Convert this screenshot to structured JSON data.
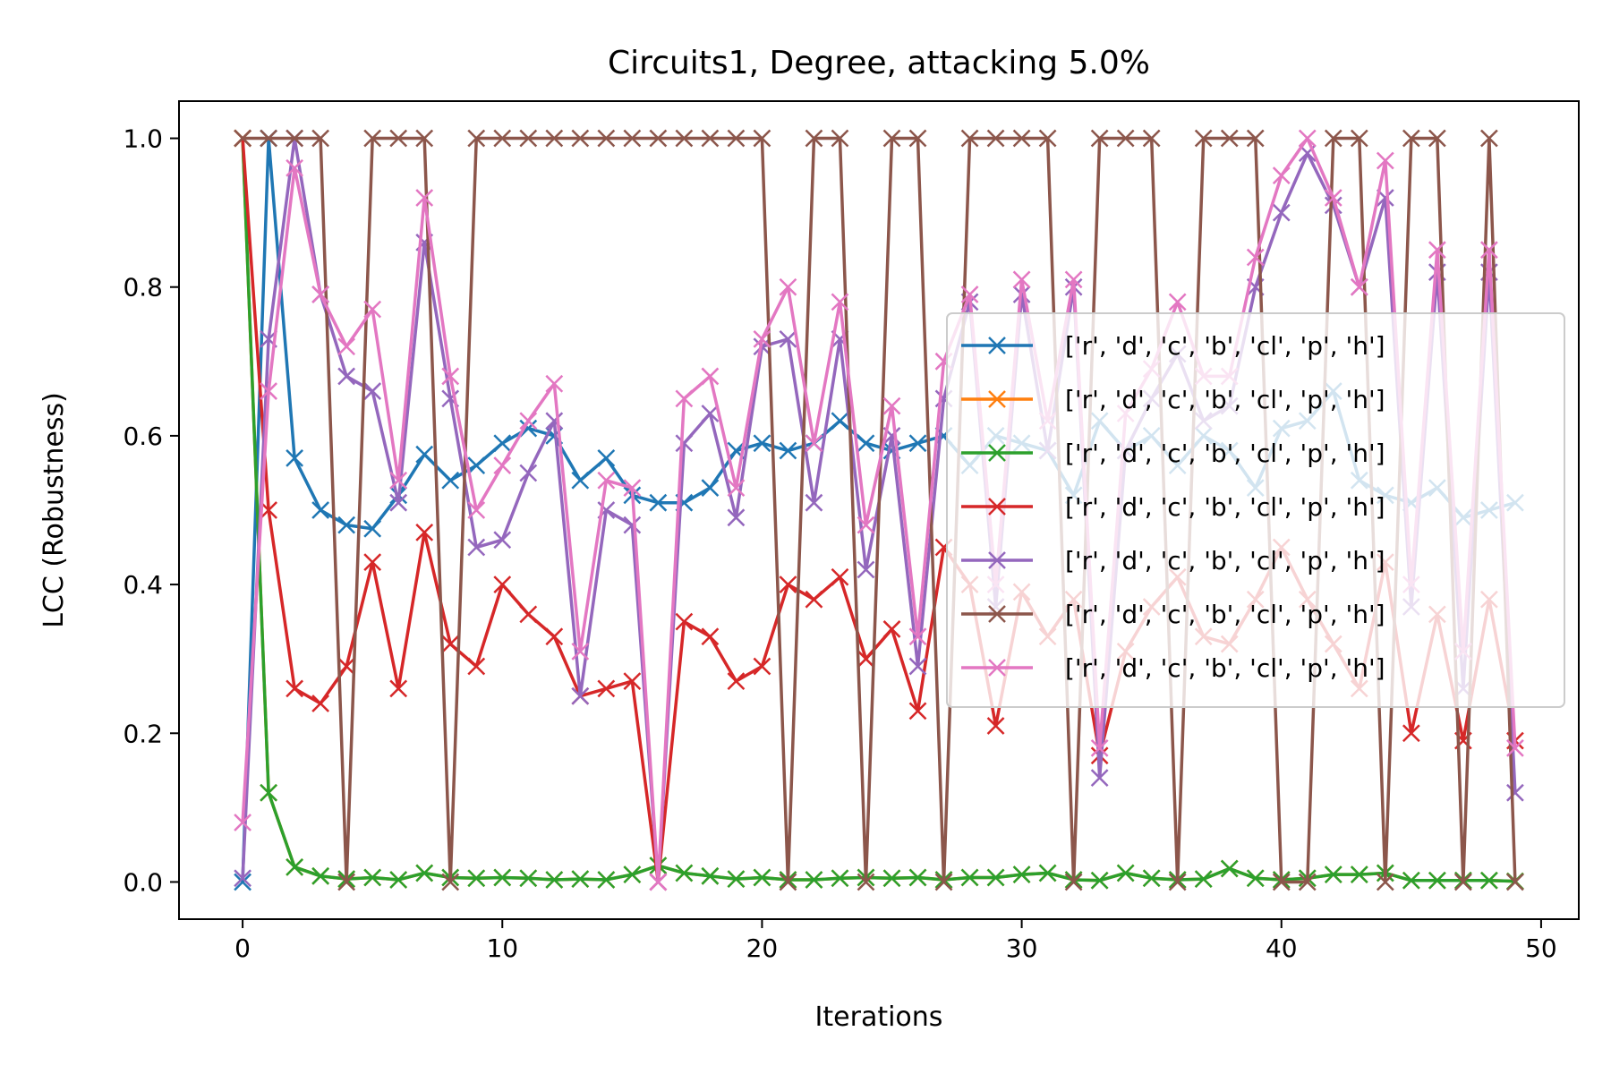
{
  "chart_data": {
    "type": "line",
    "title": "Circuits1, Degree, attacking 5.0%",
    "xlabel": "Iterations",
    "ylabel": "LCC (Robustness)",
    "xlim": [
      -2.45,
      51.45
    ],
    "ylim": [
      -0.05,
      1.05
    ],
    "xticks": [
      0,
      10,
      20,
      30,
      40,
      50
    ],
    "yticks": [
      0.0,
      0.2,
      0.4,
      0.6,
      0.8,
      1.0
    ],
    "xtick_labels": [
      "0",
      "10",
      "20",
      "30",
      "40",
      "50"
    ],
    "ytick_labels": [
      "0.0",
      "0.2",
      "0.4",
      "0.6",
      "0.8",
      "1.0"
    ],
    "grid": false,
    "legend_position": "center-right",
    "marker": "x",
    "x": [
      0,
      1,
      2,
      3,
      4,
      5,
      6,
      7,
      8,
      9,
      10,
      11,
      12,
      13,
      14,
      15,
      16,
      17,
      18,
      19,
      20,
      21,
      22,
      23,
      24,
      25,
      26,
      27,
      28,
      29,
      30,
      31,
      32,
      33,
      34,
      35,
      36,
      37,
      38,
      39,
      40,
      41,
      42,
      43,
      44,
      45,
      46,
      47,
      48,
      49
    ],
    "series": [
      {
        "name": "['r', 'd', 'c', 'b', 'cl', 'p', 'h']",
        "color": "#1f77b4",
        "values": [
          0.0,
          1.0,
          0.57,
          0.5,
          0.48,
          0.475,
          0.52,
          0.575,
          0.54,
          0.56,
          0.59,
          0.61,
          0.6,
          0.54,
          0.57,
          0.52,
          0.51,
          0.51,
          0.53,
          0.58,
          0.59,
          0.58,
          0.59,
          0.62,
          0.59,
          0.58,
          0.59,
          0.6,
          0.56,
          0.6,
          0.59,
          0.58,
          0.52,
          0.62,
          0.58,
          0.6,
          0.56,
          0.6,
          0.58,
          0.53,
          0.61,
          0.62,
          0.66,
          0.54,
          0.52,
          0.51,
          0.53,
          0.49,
          0.5,
          0.51
        ]
      },
      {
        "name": "['r', 'd', 'c', 'b', 'cl', 'p', 'h']",
        "color": "#ff7f0e",
        "values": [
          1.0,
          0.12,
          0.02,
          0.008,
          0.004,
          0.006,
          0.003,
          0.012,
          0.006,
          0.005,
          0.006,
          0.005,
          0.003,
          0.004,
          0.003,
          0.01,
          0.022,
          0.012,
          0.008,
          0.004,
          0.006,
          0.003,
          0.003,
          0.005,
          0.006,
          0.005,
          0.006,
          0.003,
          0.006,
          0.006,
          0.01,
          0.012,
          0.003,
          0.002,
          0.012,
          0.005,
          0.003,
          0.004,
          0.018,
          0.005,
          0.003,
          0.005,
          0.01,
          0.01,
          0.012,
          0.002,
          0.002,
          0.002,
          0.002,
          0.001
        ]
      },
      {
        "name": "['r', 'd', 'c', 'b', 'cl', 'p', 'h']",
        "color": "#2ca02c",
        "values": [
          1.0,
          0.12,
          0.02,
          0.008,
          0.004,
          0.006,
          0.003,
          0.012,
          0.006,
          0.005,
          0.006,
          0.005,
          0.003,
          0.004,
          0.003,
          0.01,
          0.022,
          0.012,
          0.008,
          0.004,
          0.006,
          0.003,
          0.003,
          0.005,
          0.006,
          0.005,
          0.006,
          0.003,
          0.006,
          0.006,
          0.01,
          0.012,
          0.003,
          0.002,
          0.012,
          0.005,
          0.003,
          0.004,
          0.018,
          0.005,
          0.003,
          0.005,
          0.01,
          0.01,
          0.012,
          0.002,
          0.002,
          0.002,
          0.002,
          0.001
        ]
      },
      {
        "name": "['r', 'd', 'c', 'b', 'cl', 'p', 'h']",
        "color": "#d62728",
        "values": [
          1.0,
          0.5,
          0.26,
          0.24,
          0.29,
          0.43,
          0.26,
          0.47,
          0.32,
          0.29,
          0.4,
          0.36,
          0.33,
          0.25,
          0.26,
          0.27,
          0.0,
          0.35,
          0.33,
          0.27,
          0.29,
          0.4,
          0.38,
          0.41,
          0.3,
          0.34,
          0.23,
          0.45,
          0.4,
          0.21,
          0.39,
          0.33,
          0.38,
          0.17,
          0.31,
          0.37,
          0.41,
          0.33,
          0.32,
          0.38,
          0.45,
          0.38,
          0.32,
          0.26,
          0.43,
          0.2,
          0.36,
          0.19,
          0.38,
          0.19
        ]
      },
      {
        "name": "['r', 'd', 'c', 'b', 'cl', 'p', 'h']",
        "color": "#9467bd",
        "values": [
          0.005,
          0.73,
          1.0,
          0.79,
          0.68,
          0.66,
          0.51,
          0.86,
          0.65,
          0.45,
          0.46,
          0.55,
          0.62,
          0.25,
          0.5,
          0.48,
          0.0,
          0.59,
          0.63,
          0.49,
          0.72,
          0.73,
          0.51,
          0.73,
          0.42,
          0.6,
          0.29,
          0.65,
          0.78,
          0.37,
          0.79,
          0.58,
          0.8,
          0.14,
          0.58,
          0.65,
          0.71,
          0.62,
          0.64,
          0.8,
          0.9,
          0.98,
          0.91,
          0.8,
          0.92,
          0.37,
          0.82,
          0.26,
          0.82,
          0.12
        ]
      },
      {
        "name": "['r', 'd', 'c', 'b', 'cl', 'p', 'h']",
        "color": "#8c564b",
        "values": [
          1.0,
          1.0,
          1.0,
          1.0,
          0.0,
          1.0,
          1.0,
          1.0,
          0.0,
          1.0,
          1.0,
          1.0,
          1.0,
          1.0,
          1.0,
          1.0,
          1.0,
          1.0,
          1.0,
          1.0,
          1.0,
          0.0,
          1.0,
          1.0,
          0.0,
          1.0,
          1.0,
          0.0,
          1.0,
          1.0,
          1.0,
          1.0,
          0.0,
          1.0,
          1.0,
          1.0,
          0.0,
          1.0,
          1.0,
          1.0,
          0.0,
          0.0,
          1.0,
          1.0,
          0.0,
          1.0,
          1.0,
          0.0,
          1.0,
          0.0
        ]
      },
      {
        "name": "['r', 'd', 'c', 'b', 'cl', 'p', 'h']",
        "color": "#e377c2",
        "values": [
          0.08,
          0.66,
          0.96,
          0.79,
          0.72,
          0.77,
          0.54,
          0.92,
          0.68,
          0.5,
          0.56,
          0.62,
          0.67,
          0.31,
          0.54,
          0.53,
          0.0,
          0.65,
          0.68,
          0.53,
          0.73,
          0.8,
          0.59,
          0.78,
          0.48,
          0.64,
          0.33,
          0.7,
          0.79,
          0.4,
          0.81,
          0.62,
          0.81,
          0.18,
          0.63,
          0.69,
          0.78,
          0.68,
          0.68,
          0.84,
          0.95,
          1.0,
          0.92,
          0.8,
          0.97,
          0.4,
          0.85,
          0.31,
          0.85,
          0.18
        ]
      }
    ]
  }
}
